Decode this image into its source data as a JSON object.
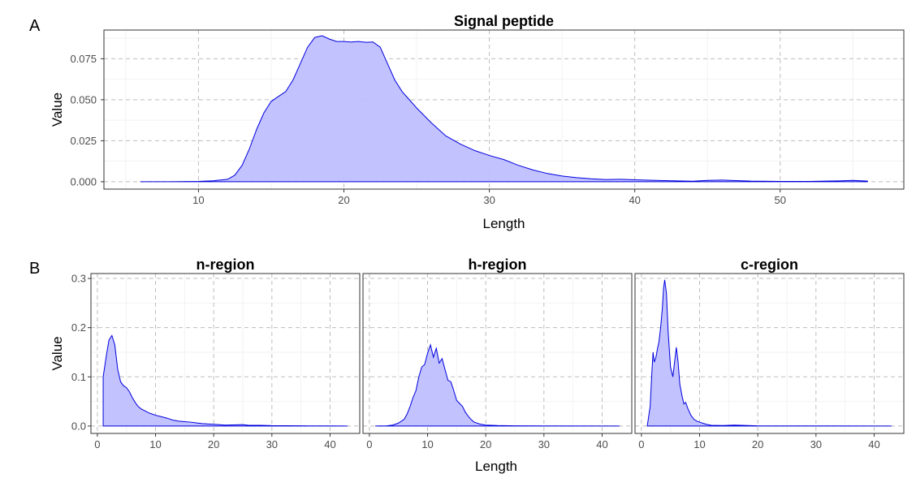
{
  "figure": {
    "panel_a": "A",
    "panel_b": "B",
    "shared_xlabel_b": "Length"
  },
  "colors": {
    "line": "#0000dd",
    "fill": "#bfbfff"
  },
  "chart_data": [
    {
      "type": "area",
      "title": "Signal peptide",
      "xlabel": "Length",
      "ylabel": "Value",
      "xlim": [
        3.5,
        58.5
      ],
      "ylim": [
        -0.0045,
        0.0925
      ],
      "xticks": [
        10,
        20,
        30,
        40,
        50
      ],
      "yticks": [
        0,
        0.025,
        0.05,
        0.075
      ],
      "ytick_labels": [
        "0.000",
        "0.025",
        "0.050",
        "0.075"
      ],
      "xminor": [
        5,
        15,
        25,
        35,
        45,
        55
      ],
      "yminor": [
        0.0125,
        0.0375,
        0.0625,
        0.0875
      ],
      "grid": true,
      "x": [
        6,
        8,
        10,
        11,
        12,
        12.5,
        13,
        13.5,
        14,
        14.5,
        15,
        15.5,
        16,
        16.5,
        17,
        17.5,
        18,
        18.5,
        19,
        19.5,
        20,
        20.5,
        21,
        21.5,
        22,
        22.5,
        23,
        23.5,
        24,
        24.5,
        25,
        26,
        27,
        28,
        29,
        30,
        31,
        32,
        33,
        34,
        35,
        36,
        37,
        38,
        39,
        40,
        42,
        44,
        45,
        46,
        48,
        50,
        52,
        54,
        55,
        56
      ],
      "y": [
        0.0,
        0.0,
        0.0002,
        0.0006,
        0.0015,
        0.004,
        0.01,
        0.02,
        0.032,
        0.042,
        0.049,
        0.052,
        0.055,
        0.062,
        0.072,
        0.082,
        0.088,
        0.089,
        0.087,
        0.0855,
        0.0855,
        0.0852,
        0.0855,
        0.085,
        0.0852,
        0.082,
        0.072,
        0.062,
        0.055,
        0.05,
        0.045,
        0.036,
        0.028,
        0.023,
        0.019,
        0.016,
        0.0135,
        0.01,
        0.0072,
        0.005,
        0.0035,
        0.0025,
        0.0018,
        0.0013,
        0.0015,
        0.0012,
        0.0007,
        0.0003,
        0.0008,
        0.001,
        0.0004,
        0.0002,
        0.0002,
        0.0005,
        0.0008,
        0.0004
      ]
    },
    {
      "type": "area",
      "title": "n-region",
      "xlabel": "",
      "ylabel": "Value",
      "xlim": [
        -1.1,
        45.1
      ],
      "ylim": [
        -0.015,
        0.31
      ],
      "xticks": [
        0,
        10,
        20,
        30,
        40
      ],
      "yticks": [
        0,
        0.1,
        0.2,
        0.3
      ],
      "ytick_labels": [
        "0.0",
        "0.1",
        "0.2",
        "0.3"
      ],
      "xminor": [
        5,
        15,
        25,
        35
      ],
      "yminor": [
        0.05,
        0.15,
        0.25
      ],
      "grid": true,
      "x": [
        1,
        1,
        1.5,
        2,
        2.5,
        3,
        3.5,
        4,
        4.5,
        5,
        5.5,
        6,
        6.5,
        7,
        7.5,
        8,
        9,
        10,
        11,
        12,
        13,
        14,
        15,
        16,
        17,
        18,
        20,
        22,
        24,
        25,
        26,
        28,
        30,
        35,
        40,
        43
      ],
      "y": [
        0.0,
        0.1,
        0.14,
        0.175,
        0.184,
        0.165,
        0.115,
        0.09,
        0.082,
        0.078,
        0.07,
        0.058,
        0.048,
        0.04,
        0.035,
        0.032,
        0.026,
        0.022,
        0.019,
        0.016,
        0.012,
        0.01,
        0.009,
        0.008,
        0.0065,
        0.005,
        0.0035,
        0.002,
        0.0025,
        0.003,
        0.0015,
        0.0015,
        0.0008,
        0.0004,
        0.0002,
        0.0
      ]
    },
    {
      "type": "area",
      "title": "h-region",
      "xlabel": "",
      "ylabel": "",
      "xlim": [
        -1.1,
        45.1
      ],
      "ylim": [
        -0.015,
        0.31
      ],
      "xticks": [
        0,
        10,
        20,
        30,
        40
      ],
      "yticks": [
        0,
        0.1,
        0.2,
        0.3
      ],
      "xminor": [
        5,
        15,
        25,
        35
      ],
      "yminor": [
        0.05,
        0.15,
        0.25
      ],
      "grid": true,
      "x": [
        1,
        3,
        4,
        5,
        6,
        6.5,
        7,
        7.5,
        8,
        8.5,
        9,
        9.5,
        10,
        10.5,
        11,
        11.5,
        12,
        12.5,
        13,
        13.5,
        14,
        14.5,
        15,
        15.5,
        16,
        16.5,
        17,
        17.5,
        18,
        19,
        20,
        22,
        25,
        30,
        43
      ],
      "y": [
        0.0,
        0.0005,
        0.002,
        0.006,
        0.014,
        0.025,
        0.04,
        0.058,
        0.072,
        0.1,
        0.12,
        0.125,
        0.148,
        0.165,
        0.14,
        0.158,
        0.128,
        0.137,
        0.115,
        0.093,
        0.09,
        0.072,
        0.052,
        0.046,
        0.04,
        0.028,
        0.02,
        0.013,
        0.008,
        0.004,
        0.002,
        0.001,
        0.0004,
        0.0002,
        0.0
      ]
    },
    {
      "type": "area",
      "title": "c-region",
      "xlabel": "",
      "ylabel": "",
      "xlim": [
        -1.1,
        45.1
      ],
      "ylim": [
        -0.015,
        0.31
      ],
      "xticks": [
        0,
        10,
        20,
        30,
        40
      ],
      "yticks": [
        0,
        0.1,
        0.2,
        0.3
      ],
      "xminor": [
        5,
        15,
        25,
        35
      ],
      "yminor": [
        0.05,
        0.15,
        0.25
      ],
      "grid": true,
      "x": [
        1,
        1.5,
        1.8,
        2,
        2.2,
        2.5,
        2.8,
        3,
        3.3,
        3.6,
        3.8,
        4,
        4.3,
        4.6,
        5,
        5.4,
        5.7,
        6,
        6.3,
        6.6,
        7,
        7.3,
        7.6,
        8,
        8.5,
        9,
        9.5,
        10,
        11,
        12,
        14,
        16,
        20,
        30,
        43
      ],
      "y": [
        0.0,
        0.04,
        0.11,
        0.15,
        0.13,
        0.14,
        0.16,
        0.17,
        0.2,
        0.24,
        0.28,
        0.297,
        0.27,
        0.19,
        0.12,
        0.1,
        0.13,
        0.16,
        0.13,
        0.085,
        0.06,
        0.045,
        0.048,
        0.035,
        0.022,
        0.014,
        0.01,
        0.008,
        0.004,
        0.0015,
        0.001,
        0.002,
        0.0005,
        0.0002,
        0.0
      ]
    }
  ]
}
